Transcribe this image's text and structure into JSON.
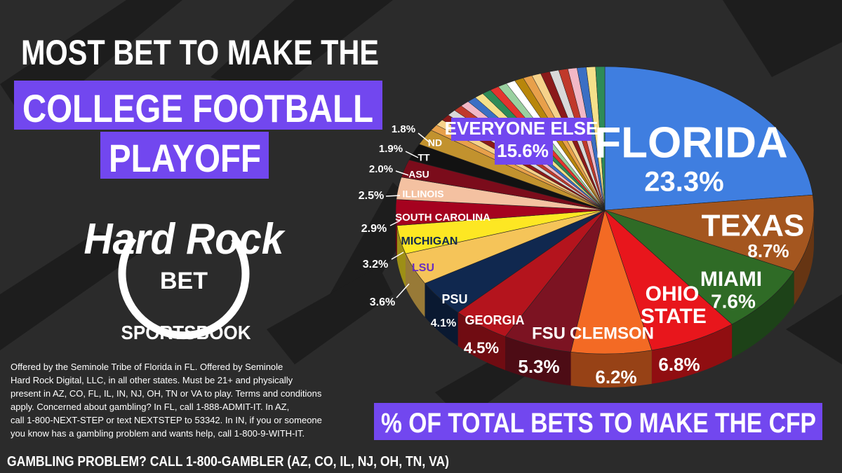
{
  "chart_data": {
    "type": "pie",
    "title_lines": [
      "MOST BET TO MAKE THE",
      "COLLEGE FOOTBALL",
      "PLAYOFF"
    ],
    "subtitle": "% OF TOTAL BETS TO MAKE THE CFP",
    "categories": [
      "FLORIDA",
      "TEXAS",
      "MIAMI",
      "OHIO STATE",
      "CLEMSON",
      "FSU",
      "GEORGIA",
      "PSU",
      "LSU",
      "MICHIGAN",
      "SOUTH CAROLINA",
      "ILLINOIS",
      "ASU",
      "TT",
      "ND",
      "EVERYONE ELSE"
    ],
    "values": [
      23.3,
      8.7,
      7.6,
      6.8,
      6.2,
      5.3,
      4.5,
      4.1,
      3.6,
      3.2,
      2.9,
      2.5,
      2.0,
      1.9,
      1.8,
      15.6
    ],
    "value_labels": [
      "23.3%",
      "8.7%",
      "7.6%",
      "6.8%",
      "6.2%",
      "5.3%",
      "4.5%",
      "4.1%",
      "3.6%",
      "3.2%",
      "2.9%",
      "2.5%",
      "2.0%",
      "1.9%",
      "1.8%",
      "15.6%"
    ],
    "colors": [
      "#3f7ee0",
      "#a4561f",
      "#2f6b26",
      "#e8161c",
      "#f36a24",
      "#7c1322",
      "#b4141d",
      "#10284f",
      "#f5c459",
      "#fde723",
      "#a5021f",
      "#f4c1a1",
      "#7b0c1b",
      "#121212",
      "#c2922e",
      "#e8a04a"
    ]
  },
  "brand": {
    "name": "Hard Rock",
    "product": "BET",
    "tagline": "SPORTSBOOK"
  },
  "disclaimer": [
    "Offered by the Seminole Tribe of Florida in FL. Offered by Seminole",
    "Hard Rock Digital, LLC, in all other states. Must be 21+ and physically",
    "present in AZ, CO, FL, IL, IN, NJ, OH, TN or VA to play. Terms and conditions",
    "apply. Concerned about gambling? In FL, call 1-888-ADMIT-IT. In AZ,",
    "call 1-800-NEXT-STEP or text NEXTSTEP to 53342. In IN, if you or someone",
    "you know has a gambling problem and wants help, call 1-800-9-WITH-IT."
  ],
  "helpline": "GAMBLING PROBLEM? CALL 1-800-GAMBLER (AZ, CO, IL, NJ, OH, TN, VA)"
}
